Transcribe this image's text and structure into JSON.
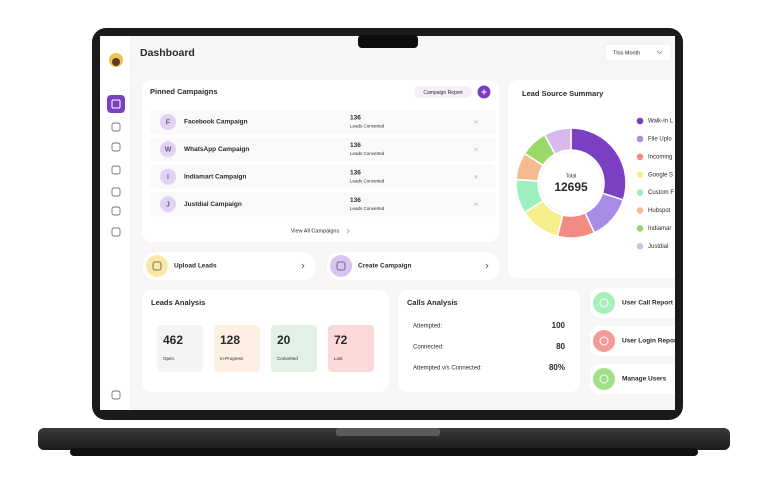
{
  "header": {
    "title": "Dashboard",
    "period": "This Month"
  },
  "pinned_campaigns": {
    "title": "Pinned Campaigns",
    "report_button": "Campaign Report",
    "rows": [
      {
        "initial": "F",
        "name": "Facebook Campaign",
        "count": "136",
        "count_label": "Leads Converted"
      },
      {
        "initial": "W",
        "name": "WhatsApp Campaign",
        "count": "136",
        "count_label": "Leads Converted"
      },
      {
        "initial": "I",
        "name": "Indiamart Campaign",
        "count": "136",
        "count_label": "Leads Converted"
      },
      {
        "initial": "J",
        "name": "Justdial Campaign",
        "count": "136",
        "count_label": "Leads Converted"
      }
    ],
    "view_all": "View All Campaigns"
  },
  "lead_source": {
    "title": "Lead Source Summary",
    "total_label": "Total",
    "total": "12695",
    "segments": [
      {
        "name": "Walk-In L",
        "color": "#7b3fc4",
        "value": 30
      },
      {
        "name": "File Uplo",
        "color": "#a98ce6",
        "value": 13
      },
      {
        "name": "Incoming",
        "color": "#f28b82",
        "value": 11
      },
      {
        "name": "Google S",
        "color": "#f5f08c",
        "value": 12
      },
      {
        "name": "Custom F",
        "color": "#9cf0c0",
        "value": 10
      },
      {
        "name": "Hubspot",
        "color": "#f7b98f",
        "value": 8
      },
      {
        "name": "Indiamar",
        "color": "#9ad86a",
        "value": 8
      },
      {
        "name": "Justdial",
        "color": "#d9b8ee",
        "value": 8
      }
    ]
  },
  "actions": [
    {
      "name": "Upload Leads",
      "color": "#fbe8a6"
    },
    {
      "name": "Create Campaign",
      "color": "#d9c3f0"
    }
  ],
  "leads_analysis": {
    "title": "Leads Analysis",
    "stats": [
      {
        "value": "462",
        "label": "Open",
        "color": "#f5f3f5"
      },
      {
        "value": "128",
        "label": "In-Progress",
        "color": "#fdf0e2"
      },
      {
        "value": "20",
        "label": "Converted",
        "color": "#e2f1e5"
      },
      {
        "value": "72",
        "label": "Lost",
        "color": "#fbd9d9"
      }
    ]
  },
  "calls_analysis": {
    "title": "Calls Analysis",
    "rows": [
      {
        "label": "Attempted:",
        "value": "100"
      },
      {
        "label": "Connected:",
        "value": "80"
      },
      {
        "label": "Attempted v/s Connected:",
        "value": "80%"
      }
    ]
  },
  "reports": [
    {
      "name": "User Call Report",
      "color": "#a6efb8"
    },
    {
      "name": "User Login Report",
      "color": "#f49a9a"
    },
    {
      "name": "Manage Users",
      "color": "#9fdf88"
    }
  ]
}
